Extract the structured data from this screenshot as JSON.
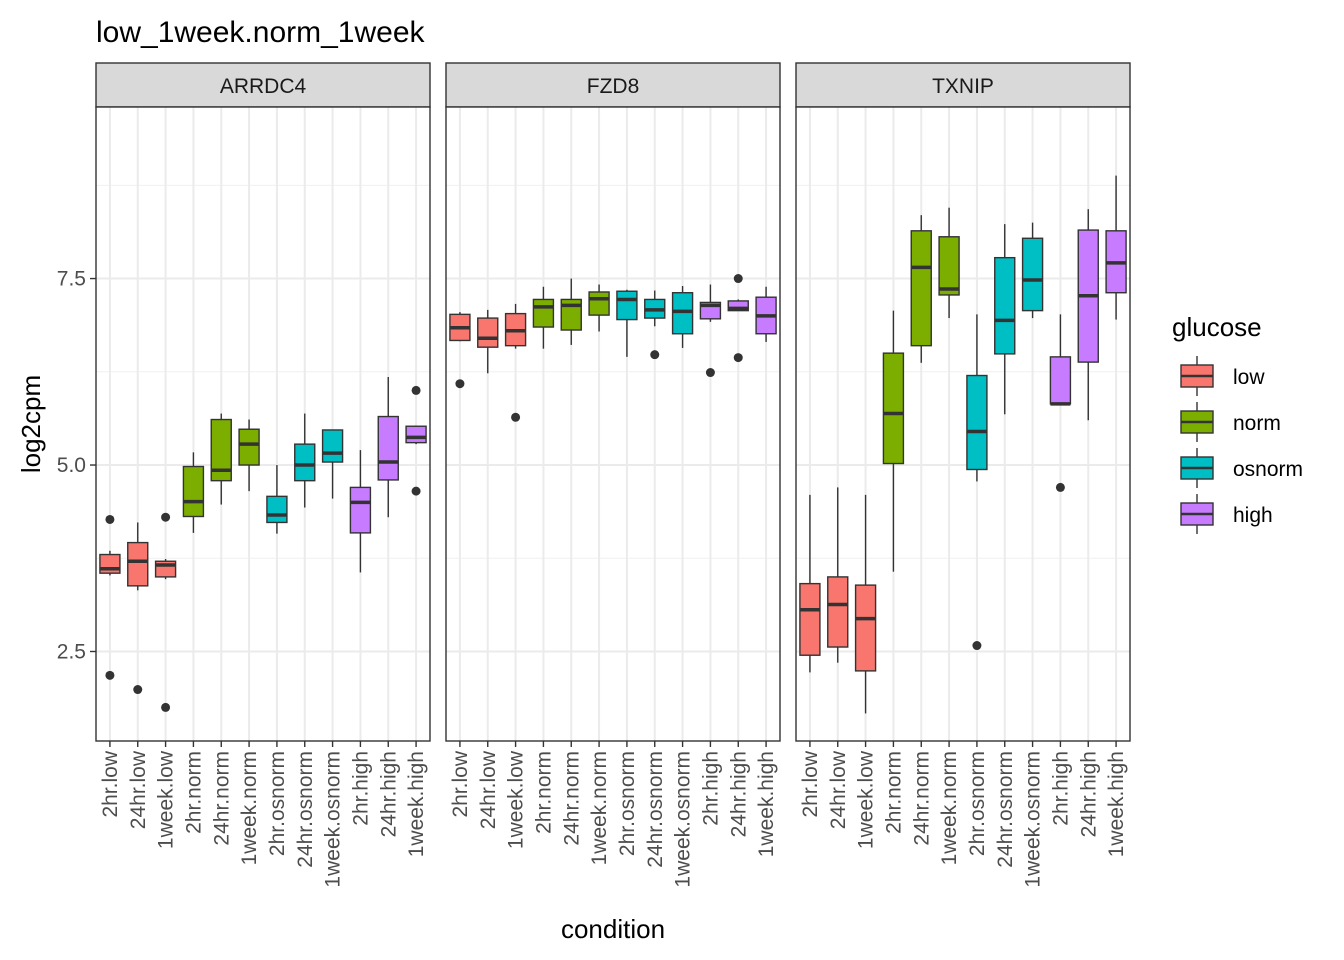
{
  "chart_data": {
    "type": "boxplot",
    "title": "low_1week.norm_1week",
    "xlabel": "condition",
    "ylabel": "log2cpm",
    "ylim": [
      1.3,
      9.8
    ],
    "y_ticks": [
      "2.5",
      "5.0",
      "7.5"
    ],
    "y_tick_values": [
      2.5,
      5.0,
      7.5
    ],
    "grid": true,
    "legend": {
      "title": "glucose",
      "position": "right",
      "items": [
        {
          "label": "low",
          "color": "#F8766D"
        },
        {
          "label": "norm",
          "color": "#7CAE00"
        },
        {
          "label": "osnorm",
          "color": "#00BFC4"
        },
        {
          "label": "high",
          "color": "#C77CFF"
        }
      ]
    },
    "categories": [
      "2hr.low",
      "24hr.low",
      "1week.low",
      "2hr.norm",
      "24hr.norm",
      "1week.norm",
      "2hr.osnorm",
      "24hr.osnorm",
      "1week.osnorm",
      "2hr.high",
      "24hr.high",
      "1week.high"
    ],
    "category_groups": [
      "low",
      "low",
      "low",
      "norm",
      "norm",
      "norm",
      "osnorm",
      "osnorm",
      "osnorm",
      "high",
      "high",
      "high"
    ],
    "panels": [
      {
        "name": "ARRDC4",
        "boxes": [
          {
            "min": 3.52,
            "q1": 3.55,
            "median": 3.61,
            "q3": 3.8,
            "max": 3.85,
            "outliers": [
              4.27,
              2.18
            ]
          },
          {
            "min": 3.32,
            "q1": 3.38,
            "median": 3.71,
            "q3": 3.96,
            "max": 4.23,
            "outliers": [
              1.99
            ]
          },
          {
            "min": 3.47,
            "q1": 3.5,
            "median": 3.66,
            "q3": 3.71,
            "max": 3.74,
            "outliers": [
              4.3,
              1.75
            ]
          },
          {
            "min": 4.09,
            "q1": 4.31,
            "median": 4.51,
            "q3": 4.98,
            "max": 5.17,
            "outliers": []
          },
          {
            "min": 4.47,
            "q1": 4.79,
            "median": 4.93,
            "q3": 5.61,
            "max": 5.69,
            "outliers": []
          },
          {
            "min": 4.65,
            "q1": 5.0,
            "median": 5.28,
            "q3": 5.48,
            "max": 5.61,
            "outliers": []
          },
          {
            "min": 4.08,
            "q1": 4.23,
            "median": 4.33,
            "q3": 4.58,
            "max": 5.0,
            "outliers": []
          },
          {
            "min": 4.43,
            "q1": 4.79,
            "median": 5.0,
            "q3": 5.28,
            "max": 5.69,
            "outliers": []
          },
          {
            "min": 4.55,
            "q1": 5.04,
            "median": 5.16,
            "q3": 5.47,
            "max": 5.47,
            "outliers": []
          },
          {
            "min": 3.56,
            "q1": 4.09,
            "median": 4.5,
            "q3": 4.7,
            "max": 5.2,
            "outliers": []
          },
          {
            "min": 4.3,
            "q1": 4.8,
            "median": 5.04,
            "q3": 5.65,
            "max": 6.18,
            "outliers": []
          },
          {
            "min": 5.28,
            "q1": 5.3,
            "median": 5.37,
            "q3": 5.52,
            "max": 5.53,
            "outliers": [
              6.0,
              4.65
            ]
          }
        ]
      },
      {
        "name": "FZD8",
        "boxes": [
          {
            "min": 6.66,
            "q1": 6.67,
            "median": 6.84,
            "q3": 7.02,
            "max": 7.05,
            "outliers": [
              6.09
            ]
          },
          {
            "min": 6.23,
            "q1": 6.58,
            "median": 6.7,
            "q3": 6.97,
            "max": 7.08,
            "outliers": []
          },
          {
            "min": 6.56,
            "q1": 6.6,
            "median": 6.8,
            "q3": 7.03,
            "max": 7.16,
            "outliers": [
              5.64
            ]
          },
          {
            "min": 6.56,
            "q1": 6.85,
            "median": 7.12,
            "q3": 7.22,
            "max": 7.39,
            "outliers": []
          },
          {
            "min": 6.61,
            "q1": 6.81,
            "median": 7.14,
            "q3": 7.22,
            "max": 7.5,
            "outliers": []
          },
          {
            "min": 6.79,
            "q1": 7.01,
            "median": 7.23,
            "q3": 7.32,
            "max": 7.42,
            "outliers": []
          },
          {
            "min": 6.45,
            "q1": 6.95,
            "median": 7.22,
            "q3": 7.33,
            "max": 7.35,
            "outliers": []
          },
          {
            "min": 6.86,
            "q1": 6.97,
            "median": 7.08,
            "q3": 7.22,
            "max": 7.34,
            "outliers": [
              6.48
            ]
          },
          {
            "min": 6.57,
            "q1": 6.76,
            "median": 7.06,
            "q3": 7.31,
            "max": 7.4,
            "outliers": []
          },
          {
            "min": 6.92,
            "q1": 6.96,
            "median": 7.14,
            "q3": 7.18,
            "max": 7.42,
            "outliers": [
              6.24
            ]
          },
          {
            "min": 7.07,
            "q1": 7.07,
            "median": 7.1,
            "q3": 7.2,
            "max": 7.22,
            "outliers": [
              7.5,
              6.44
            ]
          },
          {
            "min": 6.65,
            "q1": 6.76,
            "median": 7.0,
            "q3": 7.25,
            "max": 7.39,
            "outliers": []
          }
        ]
      },
      {
        "name": "TXNIP",
        "boxes": [
          {
            "min": 2.22,
            "q1": 2.45,
            "median": 3.06,
            "q3": 3.41,
            "max": 4.6,
            "outliers": []
          },
          {
            "min": 2.35,
            "q1": 2.56,
            "median": 3.13,
            "q3": 3.5,
            "max": 4.7,
            "outliers": []
          },
          {
            "min": 1.67,
            "q1": 2.24,
            "median": 2.94,
            "q3": 3.39,
            "max": 4.6,
            "outliers": []
          },
          {
            "min": 3.57,
            "q1": 5.02,
            "median": 5.69,
            "q3": 6.5,
            "max": 7.07,
            "outliers": []
          },
          {
            "min": 6.37,
            "q1": 6.6,
            "median": 7.65,
            "q3": 8.14,
            "max": 8.35,
            "outliers": []
          },
          {
            "min": 6.97,
            "q1": 7.28,
            "median": 7.36,
            "q3": 8.06,
            "max": 8.45,
            "outliers": []
          },
          {
            "min": 4.78,
            "q1": 4.94,
            "median": 5.45,
            "q3": 6.2,
            "max": 7.02,
            "outliers": [
              2.58
            ]
          },
          {
            "min": 5.68,
            "q1": 6.49,
            "median": 6.94,
            "q3": 7.78,
            "max": 8.23,
            "outliers": []
          },
          {
            "min": 6.97,
            "q1": 7.07,
            "median": 7.48,
            "q3": 8.04,
            "max": 8.25,
            "outliers": []
          },
          {
            "min": 5.82,
            "q1": 5.82,
            "median": 5.82,
            "q3": 6.45,
            "max": 7.02,
            "outliers": [
              4.7
            ]
          },
          {
            "min": 5.6,
            "q1": 6.38,
            "median": 7.27,
            "q3": 8.15,
            "max": 8.43,
            "outliers": []
          },
          {
            "min": 6.95,
            "q1": 7.31,
            "median": 7.71,
            "q3": 8.14,
            "max": 8.88,
            "outliers": []
          }
        ]
      }
    ]
  }
}
